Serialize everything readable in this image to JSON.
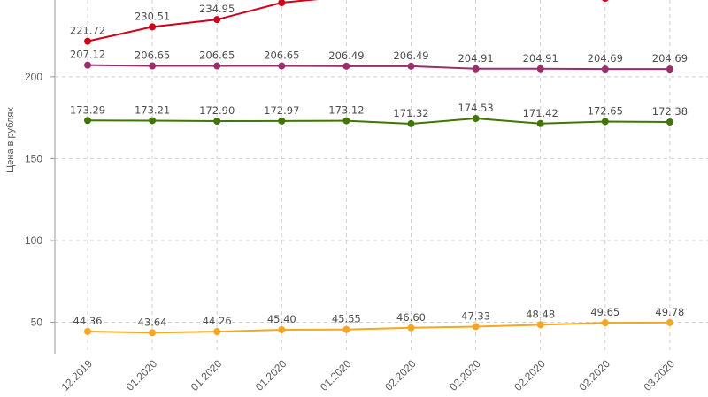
{
  "chart_data": {
    "type": "line",
    "ylabel": "Цена в рублях",
    "y_ticks": [
      50,
      100,
      150,
      200
    ],
    "x_tick_labels": [
      "12.2019",
      "01.2020",
      "01.2020",
      "01.2020",
      "01.2020",
      "02.2020",
      "02.2020",
      "02.2020",
      "02.2020",
      "03.2020"
    ],
    "grid": true,
    "series": [
      {
        "color": "#d0021b",
        "values": [
          221.72,
          230.51,
          234.95,
          null,
          null,
          null,
          null,
          null,
          null,
          null
        ],
        "labels": [
          "221.72",
          "230.51",
          "234.95",
          "",
          "",
          "",
          "",
          "",
          "",
          ""
        ]
      },
      {
        "color": "#9b2d6a",
        "values": [
          207.12,
          206.65,
          206.65,
          206.65,
          206.49,
          206.49,
          204.91,
          204.91,
          204.69,
          204.69
        ],
        "labels": [
          "207.12",
          "206.65",
          "206.65",
          "206.65",
          "206.49",
          "206.49",
          "204.91",
          "204.91",
          "204.69",
          "204.69"
        ]
      },
      {
        "color": "#417505",
        "values": [
          173.29,
          173.21,
          172.9,
          172.97,
          173.12,
          171.32,
          174.53,
          171.42,
          172.65,
          172.38
        ],
        "labels": [
          "173.29",
          "173.21",
          "172.90",
          "172.97",
          "173.12",
          "171.32",
          "174.53",
          "171.42",
          "172.65",
          "172.38"
        ]
      },
      {
        "color": "#f5a623",
        "values": [
          44.36,
          43.64,
          44.26,
          45.4,
          45.55,
          46.6,
          47.33,
          48.48,
          49.65,
          49.78
        ],
        "labels": [
          "44.36",
          "43.64",
          "44.26",
          "45.40",
          "45.55",
          "46.60",
          "47.33",
          "48.48",
          "49.65",
          "49.78"
        ]
      }
    ]
  }
}
